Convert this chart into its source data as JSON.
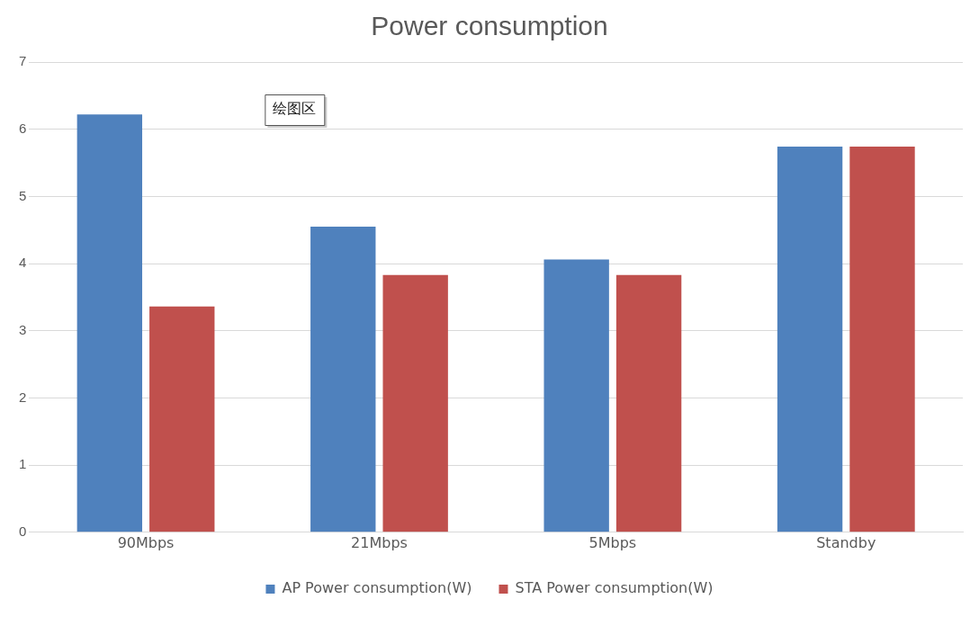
{
  "chart_data": {
    "type": "bar",
    "title": "Power consumption",
    "categories": [
      "90Mbps",
      "21Mbps",
      "5Mbps",
      "Standby"
    ],
    "series": [
      {
        "name": "AP Power consumption(W)",
        "color": "#4f81bd",
        "values": [
          6.22,
          4.55,
          4.06,
          5.74
        ]
      },
      {
        "name": "STA Power consumption(W)",
        "color": "#c0504d",
        "values": [
          3.36,
          3.83,
          3.83,
          5.74
        ]
      }
    ],
    "ylim": [
      0,
      7
    ],
    "yticks": [
      0,
      1,
      2,
      3,
      4,
      5,
      6,
      7
    ],
    "grid": "y",
    "legend": "bottom",
    "annotations": [
      "绘图区"
    ]
  }
}
